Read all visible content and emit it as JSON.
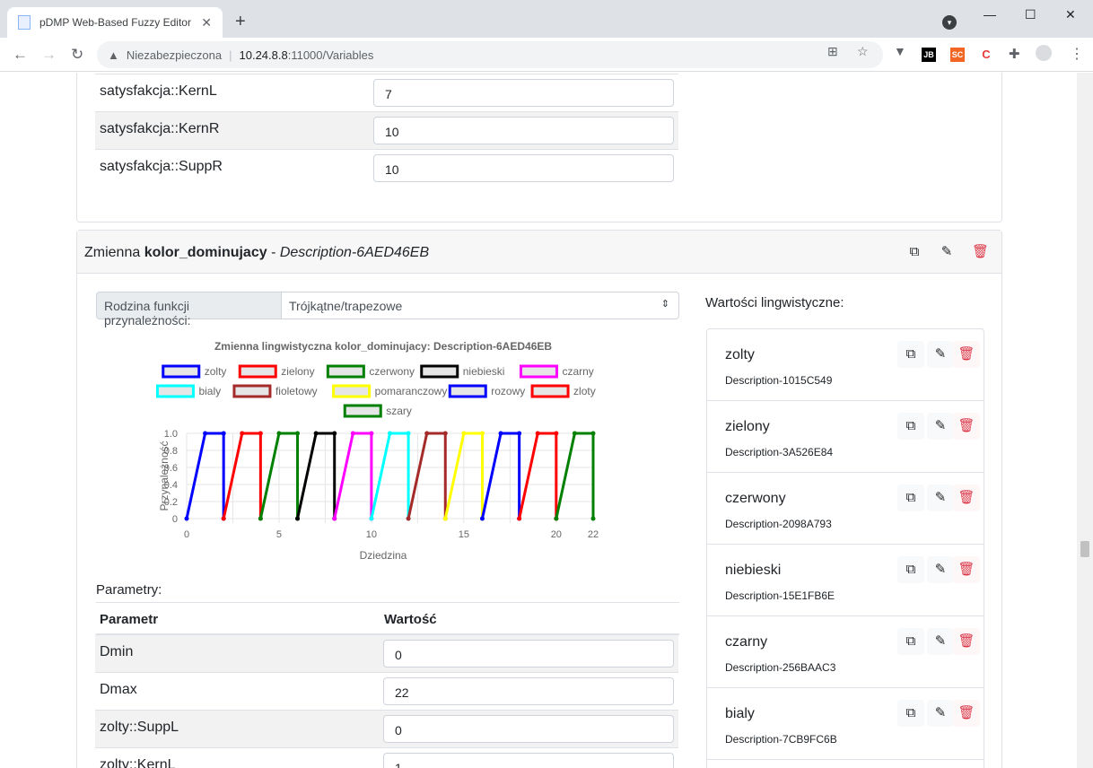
{
  "browser": {
    "tab_title": "pDMP Web-Based Fuzzy Editor",
    "tab_close": "✕",
    "new_tab": "+",
    "insecure_label": "Niezabezpieczona",
    "url_host": "10.24.8.8",
    "url_path": ":11000/Variables",
    "extensions": [
      "JB",
      "SC",
      "C"
    ]
  },
  "top_table": {
    "rows": [
      {
        "name": "satysfakcja::KernL",
        "value": "7"
      },
      {
        "name": "satysfakcja::KernR",
        "value": "10"
      },
      {
        "name": "satysfakcja::SuppR",
        "value": "10"
      }
    ]
  },
  "variable": {
    "prefix": "Zmienna",
    "name": "kolor_dominujacy",
    "separator": " - ",
    "description": "Description-6AED46EB",
    "family_label": "Rodzina funkcji przynależności:",
    "family_value": "Trójkątne/trapezowe"
  },
  "params": {
    "title": "Parametry:",
    "col_param": "Parametr",
    "col_value": "Wartość",
    "rows": [
      {
        "name": "Dmin",
        "value": "0"
      },
      {
        "name": "Dmax",
        "value": "22"
      },
      {
        "name": "zolty::SuppL",
        "value": "0"
      },
      {
        "name": "zolty::KernL",
        "value": "1"
      }
    ]
  },
  "linguistic": {
    "title": "Wartości lingwistyczne:",
    "items": [
      {
        "name": "zolty",
        "desc": "Description-1015C549"
      },
      {
        "name": "zielony",
        "desc": "Description-3A526E84"
      },
      {
        "name": "czerwony",
        "desc": "Description-2098A793"
      },
      {
        "name": "niebieski",
        "desc": "Description-15E1FB6E"
      },
      {
        "name": "czarny",
        "desc": "Description-256BAAC3"
      },
      {
        "name": "bialy",
        "desc": "Description-7CB9FC6B"
      }
    ]
  },
  "chart_data": {
    "type": "line",
    "title": "Zmienna lingwistyczna kolor_dominujacy: Description-6AED46EB",
    "xlabel": "Dziedzina",
    "ylabel": "Przynależność",
    "xlim": [
      0,
      22
    ],
    "ylim": [
      0,
      1
    ],
    "x_ticks": [
      "0",
      "5",
      "10",
      "15",
      "20",
      "22"
    ],
    "y_ticks": [
      "0",
      "0.2",
      "0.4",
      "0.6",
      "0.8",
      "1.0"
    ],
    "grid": true,
    "legend_position": "top",
    "series": [
      {
        "name": "zolty",
        "color": "#0000ff",
        "x": [
          0,
          1,
          2,
          2
        ],
        "y": [
          0,
          1,
          1,
          0
        ]
      },
      {
        "name": "zielony",
        "color": "#ff0000",
        "x": [
          2,
          3,
          4,
          4
        ],
        "y": [
          0,
          1,
          1,
          0
        ]
      },
      {
        "name": "czerwony",
        "color": "#008000",
        "x": [
          4,
          5,
          6,
          6
        ],
        "y": [
          0,
          1,
          1,
          0
        ]
      },
      {
        "name": "niebieski",
        "color": "#000000",
        "x": [
          6,
          7,
          8,
          8
        ],
        "y": [
          0,
          1,
          1,
          0
        ]
      },
      {
        "name": "czarny",
        "color": "#ff00ff",
        "x": [
          8,
          9,
          10,
          10
        ],
        "y": [
          0,
          1,
          1,
          0
        ]
      },
      {
        "name": "bialy",
        "color": "#00ffff",
        "x": [
          10,
          11,
          12,
          12
        ],
        "y": [
          0,
          1,
          1,
          0
        ]
      },
      {
        "name": "fioletowy",
        "color": "#a52a2a",
        "x": [
          12,
          13,
          14,
          14
        ],
        "y": [
          0,
          1,
          1,
          0
        ]
      },
      {
        "name": "pomaranczowy",
        "color": "#ffff00",
        "x": [
          14,
          15,
          16,
          16
        ],
        "y": [
          0,
          1,
          1,
          0
        ]
      },
      {
        "name": "rozowy",
        "color": "#0000ff",
        "x": [
          16,
          17,
          18,
          18
        ],
        "y": [
          0,
          1,
          1,
          0
        ]
      },
      {
        "name": "zloty",
        "color": "#ff0000",
        "x": [
          18,
          19,
          20,
          20
        ],
        "y": [
          0,
          1,
          1,
          0
        ]
      },
      {
        "name": "szary",
        "color": "#008000",
        "x": [
          20,
          21,
          22,
          22
        ],
        "y": [
          0,
          1,
          1,
          0
        ]
      }
    ]
  }
}
